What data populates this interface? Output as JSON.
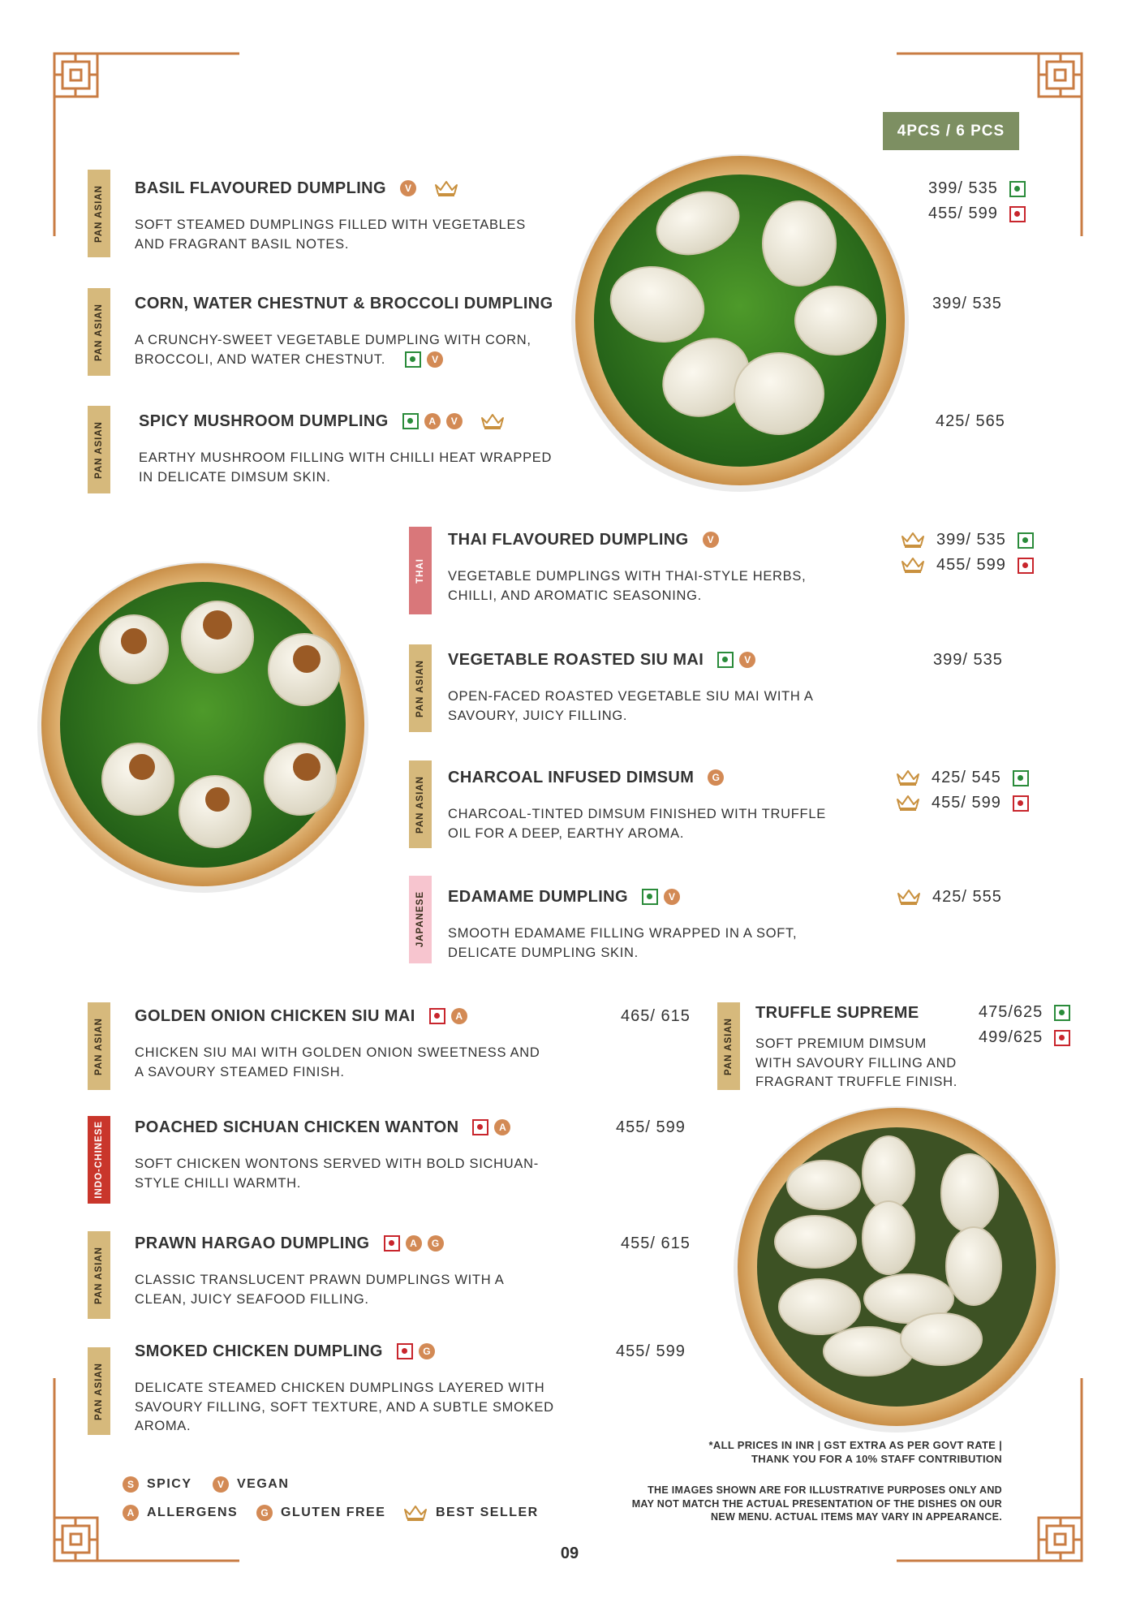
{
  "price_header": "4PCS / 6 PCS",
  "items": [
    {
      "tag": "PAN ASIAN",
      "name": "BASIL FLAVOURED DUMPLING",
      "badges": [
        "V"
      ],
      "description": [
        "SOFT STEAMED DUMPLINGS FILLED WITH VEGETABLES",
        "AND FRAGRANT BASIL NOTES."
      ],
      "prices": [
        "399/ 535",
        "455/ 599"
      ]
    },
    {
      "tag": "PAN ASIAN",
      "name": "CORN, WATER CHESTNUT & BROCCOLI DUMPLING",
      "badges": [
        "V"
      ],
      "description": [
        "A CRUNCHY-SWEET VEGETABLE DUMPLING WITH CORN,",
        "BROCCOLI, AND WATER CHESTNUT."
      ],
      "prices": [
        "399/ 535"
      ]
    },
    {
      "tag": "PAN ASIAN",
      "name": "SPICY MUSHROOM DUMPLING",
      "badges": [
        "A",
        "V"
      ],
      "description": [
        "EARTHY MUSHROOM FILLING WITH CHILLI HEAT WRAPPED",
        "IN DELICATE DIMSUM SKIN."
      ],
      "prices": [
        "425/ 565"
      ]
    },
    {
      "tag": "THAI",
      "name": "THAI FLAVOURED DUMPLING",
      "badges": [
        "V"
      ],
      "description": [
        "VEGETABLE DUMPLINGS WITH THAI-STYLE HERBS,",
        "CHILLI, AND AROMATIC SEASONING."
      ],
      "prices": [
        "399/ 535",
        "455/ 599"
      ]
    },
    {
      "tag": "PAN ASIAN",
      "name": "VEGETABLE ROASTED SIU MAI",
      "badges": [
        "V"
      ],
      "description": [
        "OPEN-FACED ROASTED VEGETABLE SIU MAI WITH A",
        "SAVOURY, JUICY FILLING."
      ],
      "prices": [
        "399/ 535"
      ]
    },
    {
      "tag": "PAN ASIAN",
      "name": "CHARCOAL INFUSED DIMSUM",
      "badges": [
        "G"
      ],
      "description": [
        "CHARCOAL-TINTED DIMSUM FINISHED WITH TRUFFLE",
        "OIL FOR A DEEP, EARTHY AROMA."
      ],
      "prices": [
        "425/ 545",
        "455/ 599"
      ]
    },
    {
      "tag": "JAPANESE",
      "name": "EDAMAME DUMPLING",
      "badges": [
        "V"
      ],
      "description": [
        "SMOOTH EDAMAME FILLING WRAPPED IN A SOFT,",
        "DELICATE DUMPLING SKIN."
      ],
      "prices": [
        "425/ 555"
      ]
    },
    {
      "tag": "PAN ASIAN",
      "name": "GOLDEN ONION CHICKEN SIU MAI",
      "badges": [
        "A"
      ],
      "description": [
        "CHICKEN SIU MAI WITH GOLDEN ONION SWEETNESS AND",
        "A SAVOURY STEAMED FINISH."
      ],
      "prices": [
        "465/ 615"
      ]
    },
    {
      "tag": "INDO-CHINESE",
      "name": "POACHED SICHUAN CHICKEN WANTON",
      "badges": [
        "A"
      ],
      "description": [
        "SOFT CHICKEN WONTONS SERVED WITH BOLD SICHUAN-",
        "STYLE CHILLI WARMTH."
      ],
      "prices": [
        "455/ 599"
      ]
    },
    {
      "tag": "PAN ASIAN",
      "name": "PRAWN HARGAO DUMPLING",
      "badges": [
        "A",
        "G"
      ],
      "description": [
        "CLASSIC TRANSLUCENT PRAWN DUMPLINGS WITH A",
        "CLEAN, JUICY SEAFOOD FILLING."
      ],
      "prices": [
        "455/ 615"
      ]
    },
    {
      "tag": "PAN ASIAN",
      "name": "SMOKED CHICKEN DUMPLING",
      "badges": [
        "G"
      ],
      "description": [
        "DELICATE STEAMED CHICKEN DUMPLINGS LAYERED WITH",
        "SAVOURY FILLING, SOFT TEXTURE, AND A SUBTLE SMOKED",
        "AROMA."
      ],
      "prices": [
        "455/ 599"
      ]
    },
    {
      "tag": "PAN ASIAN",
      "name": "TRUFFLE SUPREME",
      "badges": [],
      "description": [
        "SOFT PREMIUM DIMSUM",
        "WITH SAVOURY FILLING AND",
        "FRAGRANT TRUFFLE FINISH."
      ],
      "prices": [
        "475/625",
        "499/625"
      ]
    }
  ],
  "legend": [
    {
      "symbol": "S",
      "label": "SPICY"
    },
    {
      "symbol": "V",
      "label": "VEGAN"
    },
    {
      "symbol": "A",
      "label": "ALLERGENS"
    },
    {
      "symbol": "G",
      "label": "GLUTEN FREE"
    },
    {
      "label": "BEST SELLER"
    }
  ],
  "notes": [
    [
      "*ALL PRICES IN INR | GST EXTRA AS PER GOVT RATE |",
      "THANK YOU FOR A 10% STAFF CONTRIBUTION"
    ],
    [
      "THE IMAGES SHOWN ARE FOR ILLUSTRATIVE PURPOSES ONLY AND",
      "MAY NOT MATCH THE ACTUAL PRESENTATION OF THE DISHES ON OUR",
      "NEW MENU. ACTUAL ITEMS MAY VARY IN APPEARANCE."
    ]
  ],
  "page_number": "09"
}
